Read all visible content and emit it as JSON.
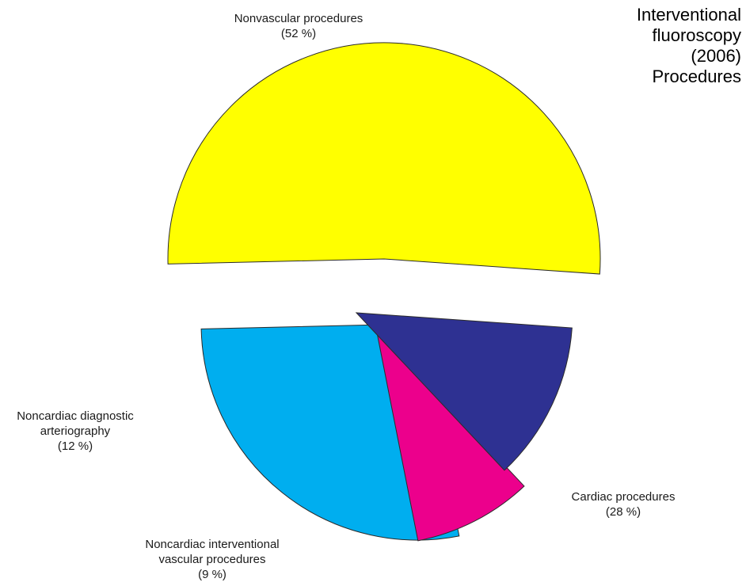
{
  "chart_data": {
    "type": "pie",
    "title_lines": [
      "Interventional",
      "fluoroscopy",
      "(2006)",
      "Procedures"
    ],
    "slices": [
      {
        "label_lines": [
          "Nonvascular procedures"
        ],
        "percent_text": "(52 %)",
        "value": 52,
        "color": "#ffff00"
      },
      {
        "label_lines": [
          "Cardiac procedures"
        ],
        "percent_text": "(28 %)",
        "value": 28,
        "color": "#00aeef"
      },
      {
        "label_lines": [
          "Noncardiac interventional",
          "vascular procedures"
        ],
        "percent_text": "(9 %)",
        "value": 9,
        "color": "#ec008c"
      },
      {
        "label_lines": [
          "Noncardiac diagnostic",
          "arteriography"
        ],
        "percent_text": "(12 %)",
        "value": 12,
        "color": "#2e3192"
      }
    ],
    "exploded": true,
    "legend": "none"
  }
}
